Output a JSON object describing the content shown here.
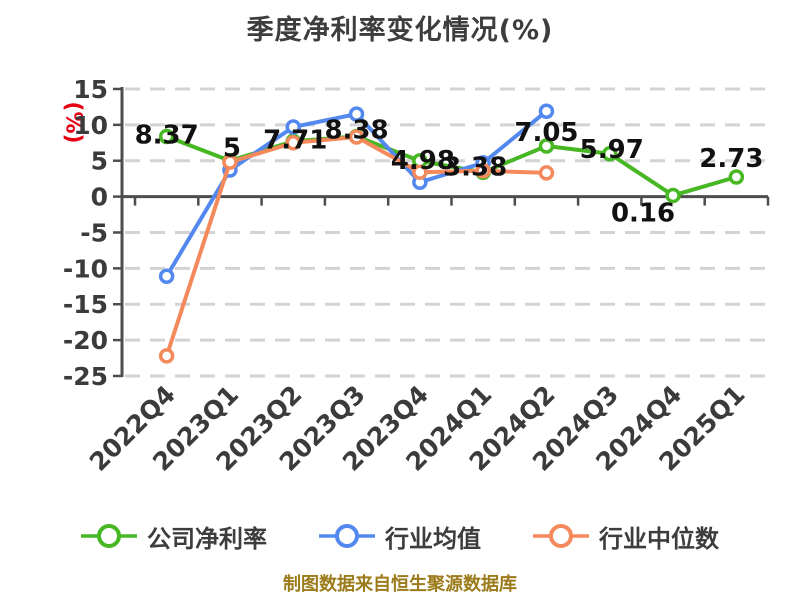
{
  "chart": {
    "title": "季度净利率变化情况(%)",
    "y_axis_unit": "(%)",
    "footer_note": "制图数据来自恒生聚源数据库",
    "colors": {
      "company_line": "#47b723",
      "industry_avg_line": "#5388ee",
      "industry_median_line": "#f4895c",
      "grid": "#d3d3d3",
      "axis": "#4d4d4d",
      "tick_text": "#3b3b3b",
      "title_text": "#3d3d3d",
      "data_label_text": "#111111",
      "y_unit_text": "#e60012",
      "footer_text": "#9c7b1b",
      "marker_fill": "#ffffff"
    }
  },
  "chart_data": {
    "type": "line",
    "title": "季度净利率变化情况(%)",
    "ylabel": "(%)",
    "xlabel": "",
    "categories": [
      "2022Q4",
      "2023Q1",
      "2023Q2",
      "2023Q3",
      "2023Q4",
      "2024Q1",
      "2024Q2",
      "2024Q3",
      "2024Q4",
      "2025Q1"
    ],
    "yticks": [
      15,
      10,
      5,
      0,
      -5,
      -10,
      -15,
      -20,
      -25
    ],
    "ylim": [
      -25,
      15
    ],
    "grid": "horizontal-dashed",
    "legend_position": "bottom",
    "series": [
      {
        "name": "公司净利率",
        "color": "#47b723",
        "values": [
          8.37,
          5,
          7.71,
          8.38,
          4.98,
          3.38,
          7.05,
          5.97,
          0.16,
          2.73
        ],
        "labels": [
          "8.37",
          "5",
          "7.71",
          "8.38",
          "4.98",
          "3.38",
          "7.05",
          "5.97",
          "0.16",
          "2.73"
        ]
      },
      {
        "name": "行业均值",
        "color": "#5388ee",
        "values": [
          -11.1,
          3.7,
          9.7,
          11.5,
          2.0,
          4.7,
          11.9,
          null,
          null,
          null
        ],
        "labels": []
      },
      {
        "name": "行业中位数",
        "color": "#f4895c",
        "values": [
          -22.2,
          4.8,
          7.5,
          8.3,
          3.4,
          3.6,
          3.3,
          null,
          null,
          null
        ],
        "labels": []
      }
    ],
    "footnote": "制图数据来自恒生聚源数据库"
  }
}
